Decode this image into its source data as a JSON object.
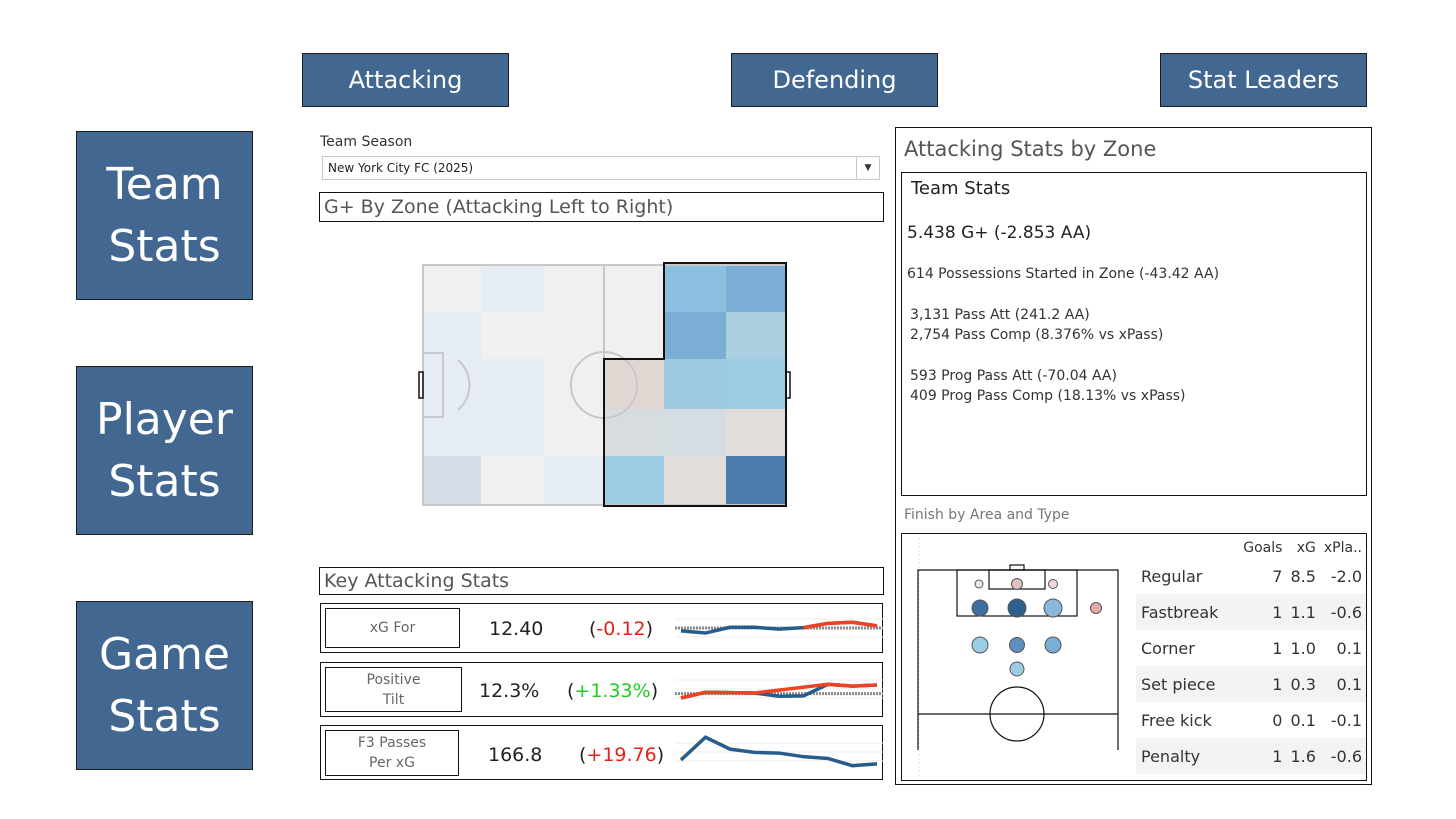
{
  "nav": {
    "top": [
      "Attacking",
      "Defending",
      "Stat Leaders"
    ],
    "side": [
      "Team\nStats",
      "Player\nStats",
      "Game\nStats"
    ]
  },
  "filter": {
    "label": "Team Season",
    "value": "New York City FC (2025)"
  },
  "zone_panel": {
    "title": "G+ By Zone (Attacking Left to Right)",
    "colors": {
      "light_1": "#f1f0f0",
      "light_2": "#e6ecf3",
      "light_3": "#d6dee7",
      "blue_1": "#8cbedf",
      "blue_2": "#7aaed4",
      "blue_3": "#abcfe1",
      "blue_4": "#9dcae2",
      "blue_5": "#9ccbe4",
      "beige_1": "#e0d6d2",
      "grey_1": "#d6dcdf",
      "grey_2": "#d3dde2",
      "grey_3": "#e2dcdb",
      "dark_blue": "#4a7dae"
    }
  },
  "key_stats": {
    "title": "Key Attacking Stats",
    "rows": [
      {
        "name": "xG For",
        "value": "12.40",
        "open": "(",
        "diff": "-0.12",
        "close": ")",
        "diff_color": "#e3221c"
      },
      {
        "name": "Positive\nTilt",
        "value": "12.3%",
        "open": "(",
        "diff": "+1.33%",
        "close": ")",
        "diff_color": "#1fcc1f"
      },
      {
        "name": "F3 Passes\nPer xG",
        "value": "166.8",
        "open": "(",
        "diff": "+19.76",
        "close": ")",
        "diff_color": "#e3221c"
      }
    ]
  },
  "right_panel": {
    "title": "Attacking Stats by Zone",
    "team_stats": {
      "heading": "Team Stats",
      "g_plus": "5.438 G+ (-2.853 AA)",
      "possessions": "614 Possessions Started in Zone (-43.42 AA)",
      "pass_att": "3,131 Pass Att (241.2 AA)",
      "pass_comp": "2,754 Pass Comp (8.376% vs xPass)",
      "prog_att": "593 Prog Pass Att  (-70.04 AA)",
      "prog_comp": "409 Prog Pass Comp (18.13% vs xPass)"
    },
    "finish_title": "Finish by Area and Type",
    "finish_table": {
      "headers": [
        "",
        "Goals",
        "xG",
        "xPla.."
      ],
      "rows": [
        [
          "Regular",
          "7",
          "8.5",
          "-2.0"
        ],
        [
          "Fastbreak",
          "1",
          "1.1",
          "-0.6"
        ],
        [
          "Corner",
          "1",
          "1.0",
          "0.1"
        ],
        [
          "Set piece",
          "1",
          "0.3",
          "0.1"
        ],
        [
          "Free kick",
          "0",
          "0.1",
          "-0.1"
        ],
        [
          "Penalty",
          "1",
          "1.6",
          "-0.6"
        ]
      ]
    }
  },
  "chart_data": [
    {
      "type": "line",
      "title": "xG For",
      "values": [
        0.42,
        0.36,
        0.52,
        0.52,
        0.47,
        0.51,
        0.63,
        0.66,
        0.56
      ],
      "highlight_from_index": 5,
      "reference": 0.5
    },
    {
      "type": "line",
      "title": "Positive Tilt",
      "values": [
        0.25,
        0.41,
        0.4,
        0.39,
        0.3,
        0.31,
        0.63,
        0.58,
        0.61
      ],
      "highlight_from_index": 0,
      "reference": 0.37
    },
    {
      "type": "line",
      "title": "F3 Passes Per xG",
      "values": [
        0.28,
        0.91,
        0.58,
        0.49,
        0.47,
        0.37,
        0.32,
        0.12,
        0.17
      ]
    }
  ]
}
